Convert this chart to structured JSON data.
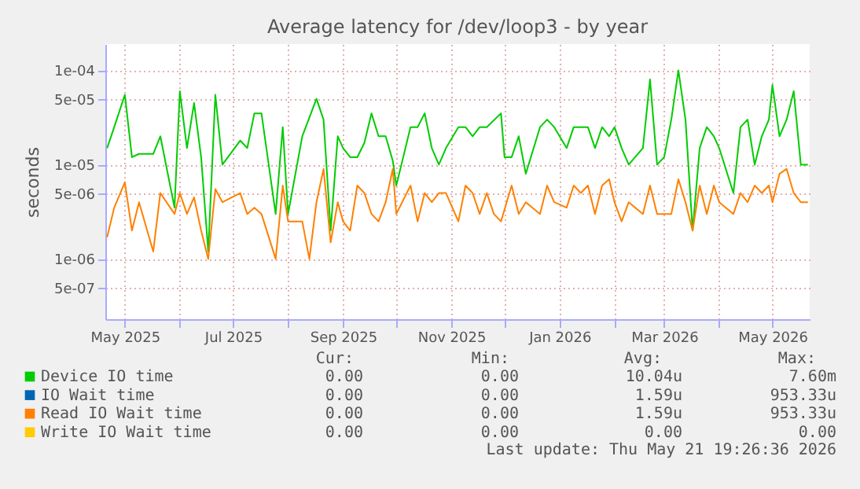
{
  "chart_data": {
    "type": "line",
    "title": "Average latency for /dev/loop3 - by year",
    "ylabel": "seconds",
    "log": true,
    "grid": true,
    "legend": "bottom",
    "line_style": "solid",
    "marker": "none",
    "xlim": [
      "2025-04-20",
      "2026-05-22"
    ],
    "ylim": [
      2.3e-07,
      0.00019
    ],
    "xticks": [
      {
        "value": "2025-05-01",
        "label": "May 2025"
      },
      {
        "value": "2025-06-01",
        "label": null
      },
      {
        "value": "2025-07-01",
        "label": "Jul 2025"
      },
      {
        "value": "2025-08-01",
        "label": null
      },
      {
        "value": "2025-09-01",
        "label": "Sep 2025"
      },
      {
        "value": "2025-10-01",
        "label": null
      },
      {
        "value": "2025-11-01",
        "label": "Nov 2025"
      },
      {
        "value": "2025-12-01",
        "label": null
      },
      {
        "value": "2026-01-01",
        "label": "Jan 2026"
      },
      {
        "value": "2026-02-01",
        "label": null
      },
      {
        "value": "2026-03-01",
        "label": "Mar 2026"
      },
      {
        "value": "2026-04-01",
        "label": null
      },
      {
        "value": "2026-05-01",
        "label": "May 2026"
      }
    ],
    "yticks": [
      {
        "value": 5e-07,
        "label": "5e-07"
      },
      {
        "value": 1e-06,
        "label": "1e-06"
      },
      {
        "value": 5e-06,
        "label": "5e-06"
      },
      {
        "value": 1e-05,
        "label": "1e-05"
      },
      {
        "value": 5e-05,
        "label": "5e-05"
      },
      {
        "value": 0.0001,
        "label": "1e-04"
      }
    ],
    "x": [
      "2025-04-21",
      "2025-04-25",
      "2025-04-29",
      "2025-05-01",
      "2025-05-05",
      "2025-05-09",
      "2025-05-13",
      "2025-05-17",
      "2025-05-21",
      "2025-05-25",
      "2025-05-29",
      "2025-06-01",
      "2025-06-05",
      "2025-06-09",
      "2025-06-13",
      "2025-06-17",
      "2025-06-21",
      "2025-06-25",
      "2025-06-29",
      "2025-07-01",
      "2025-07-05",
      "2025-07-09",
      "2025-07-13",
      "2025-07-17",
      "2025-07-21",
      "2025-07-25",
      "2025-07-29",
      "2025-08-01",
      "2025-08-05",
      "2025-08-09",
      "2025-08-13",
      "2025-08-17",
      "2025-08-21",
      "2025-08-25",
      "2025-08-29",
      "2025-09-01",
      "2025-09-05",
      "2025-09-09",
      "2025-09-13",
      "2025-09-17",
      "2025-09-21",
      "2025-09-25",
      "2025-09-29",
      "2025-10-01",
      "2025-10-05",
      "2025-10-09",
      "2025-10-13",
      "2025-10-17",
      "2025-10-21",
      "2025-10-25",
      "2025-10-29",
      "2025-11-01",
      "2025-11-05",
      "2025-11-09",
      "2025-11-13",
      "2025-11-17",
      "2025-11-21",
      "2025-11-25",
      "2025-11-29",
      "2025-12-01",
      "2025-12-05",
      "2025-12-09",
      "2025-12-13",
      "2025-12-17",
      "2025-12-21",
      "2025-12-25",
      "2025-12-29",
      "2026-01-01",
      "2026-01-05",
      "2026-01-09",
      "2026-01-13",
      "2026-01-17",
      "2026-01-21",
      "2026-01-25",
      "2026-01-29",
      "2026-02-01",
      "2026-02-05",
      "2026-02-09",
      "2026-02-13",
      "2026-02-17",
      "2026-02-21",
      "2026-02-25",
      "2026-03-01",
      "2026-03-05",
      "2026-03-09",
      "2026-03-13",
      "2026-03-17",
      "2026-03-21",
      "2026-03-25",
      "2026-03-29",
      "2026-04-01",
      "2026-04-05",
      "2026-04-09",
      "2026-04-13",
      "2026-04-17",
      "2026-04-21",
      "2026-04-25",
      "2026-04-29",
      "2026-05-01",
      "2026-05-05",
      "2026-05-09",
      "2026-05-13",
      "2026-05-17",
      "2026-05-21"
    ],
    "series": [
      {
        "name": "Device IO time",
        "color": "#00cc00",
        "values": [
          1.5e-05,
          2.5e-05,
          null,
          5.5e-05,
          1.2e-05,
          1.3e-05,
          null,
          1.3e-05,
          2e-05,
          null,
          3.5e-06,
          6e-05,
          1.5e-05,
          4.5e-05,
          1.2e-05,
          1.2e-06,
          5.5e-05,
          1e-05,
          null,
          null,
          1.8e-05,
          1.5e-05,
          3.5e-05,
          3.5e-05,
          null,
          3e-06,
          2.5e-05,
          3e-06,
          null,
          2e-05,
          null,
          5e-05,
          3e-05,
          2e-06,
          2e-05,
          1.5e-05,
          1.2e-05,
          1.2e-05,
          1.7e-05,
          3.5e-05,
          2e-05,
          2e-05,
          1.1e-05,
          6e-06,
          null,
          2.5e-05,
          2.5e-05,
          3.5e-05,
          1.5e-05,
          1e-05,
          1.5e-05,
          null,
          2.5e-05,
          2.5e-05,
          2e-05,
          2.5e-05,
          2.5e-05,
          null,
          3.5e-05,
          1.2e-05,
          1.2e-05,
          2e-05,
          8e-06,
          null,
          2.5e-05,
          3e-05,
          2.5e-05,
          null,
          1.5e-05,
          2.5e-05,
          2.5e-05,
          2.5e-05,
          1.5e-05,
          2.5e-05,
          2e-05,
          2.5e-05,
          1.5e-05,
          1e-05,
          null,
          1.5e-05,
          8e-05,
          1e-05,
          1.2e-05,
          3e-05,
          0.0001,
          3e-05,
          2e-06,
          1.5e-05,
          2.5e-05,
          2e-05,
          1.5e-05,
          null,
          5e-06,
          2.5e-05,
          3e-05,
          1e-05,
          2e-05,
          3e-05,
          7e-05,
          2e-05,
          3e-05,
          6e-05,
          1e-05,
          1e-05
        ]
      },
      {
        "name": "IO Wait time",
        "color": "#0066b3",
        "values": [
          null,
          null,
          null,
          null,
          null,
          null,
          null,
          null,
          null,
          null,
          null,
          null,
          null,
          null,
          null,
          null,
          null,
          null,
          null,
          null,
          null,
          null,
          null,
          null,
          null,
          null,
          null,
          null,
          null,
          null,
          null,
          null,
          null,
          null,
          null,
          null,
          null,
          null,
          null,
          null,
          null,
          null,
          null,
          null,
          null,
          null,
          null,
          null,
          null,
          null,
          null,
          null,
          null,
          null,
          null,
          null,
          null,
          null,
          null,
          null,
          null,
          null,
          null,
          null,
          null,
          null,
          null,
          null,
          null,
          null,
          null,
          null,
          null,
          null,
          null,
          null,
          null,
          null,
          null,
          null,
          null,
          null,
          null,
          null,
          null,
          null,
          null,
          null,
          null,
          null,
          null,
          null,
          null,
          null,
          null,
          null,
          null,
          null,
          null,
          null,
          null,
          null,
          null,
          null
        ]
      },
      {
        "name": "Read IO Wait time",
        "color": "#ff8000",
        "values": [
          1.7e-06,
          3.5e-06,
          null,
          6.5e-06,
          2e-06,
          4e-06,
          null,
          1.2e-06,
          5e-06,
          null,
          3e-06,
          5e-06,
          3e-06,
          4.5e-06,
          2e-06,
          1e-06,
          5.5e-06,
          4e-06,
          null,
          null,
          5e-06,
          3e-06,
          3.5e-06,
          3e-06,
          null,
          1e-06,
          6e-06,
          2.5e-06,
          null,
          2.5e-06,
          1e-06,
          4e-06,
          9e-06,
          1.5e-06,
          4e-06,
          2.5e-06,
          2e-06,
          6e-06,
          5e-06,
          3e-06,
          2.5e-06,
          4e-06,
          9e-06,
          3e-06,
          null,
          6e-06,
          2.5e-06,
          5e-06,
          4e-06,
          5e-06,
          5e-06,
          null,
          2.5e-06,
          6e-06,
          5e-06,
          3e-06,
          5e-06,
          3e-06,
          2.5e-06,
          null,
          6e-06,
          3e-06,
          4e-06,
          null,
          3e-06,
          6e-06,
          4e-06,
          null,
          3.5e-06,
          6e-06,
          5e-06,
          6e-06,
          3e-06,
          6e-06,
          7e-06,
          4e-06,
          2.5e-06,
          4e-06,
          null,
          3e-06,
          6e-06,
          3e-06,
          3e-06,
          3e-06,
          7e-06,
          4e-06,
          2e-06,
          6e-06,
          3e-06,
          6e-06,
          4e-06,
          null,
          3e-06,
          5e-06,
          4e-06,
          6e-06,
          5e-06,
          6e-06,
          4e-06,
          8e-06,
          9e-06,
          5e-06,
          4e-06,
          4e-06
        ]
      },
      {
        "name": "Write IO Wait time",
        "color": "#ffcc00",
        "values": [
          null,
          null,
          null,
          null,
          null,
          null,
          null,
          null,
          null,
          null,
          null,
          null,
          null,
          null,
          null,
          null,
          null,
          null,
          null,
          null,
          null,
          null,
          null,
          null,
          null,
          null,
          null,
          null,
          null,
          null,
          null,
          null,
          null,
          null,
          null,
          null,
          null,
          null,
          null,
          null,
          null,
          null,
          null,
          null,
          null,
          null,
          null,
          null,
          null,
          null,
          null,
          null,
          null,
          null,
          null,
          null,
          null,
          null,
          null,
          null,
          null,
          null,
          null,
          null,
          null,
          null,
          null,
          null,
          null,
          null,
          null,
          null,
          null,
          null,
          null,
          null,
          null,
          null,
          null,
          null,
          null,
          null,
          null,
          null,
          null,
          null,
          null,
          null,
          null,
          null,
          null,
          null,
          null,
          null,
          null,
          null,
          null,
          null,
          null,
          null,
          null,
          null,
          null,
          null
        ]
      }
    ],
    "annotations": [
      "Cur:",
      "Min:",
      "Avg:",
      "Max:",
      "0.00",
      "0.00",
      "10.04u",
      "7.60m",
      "0.00",
      "0.00",
      "1.59u",
      "953.33u",
      "0.00",
      "0.00",
      "1.59u",
      "953.33u",
      "0.00",
      "0.00",
      "0.00",
      "0.00",
      "Last update: Thu May 21 19:26:36 2026"
    ]
  }
}
